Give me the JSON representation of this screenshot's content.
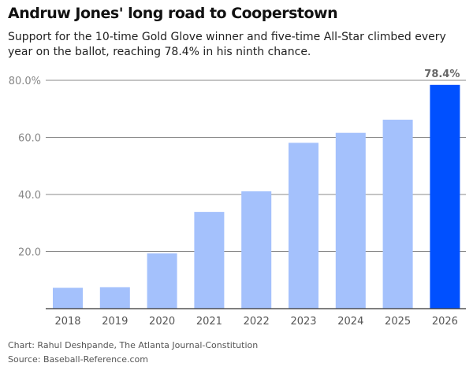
{
  "title": "Andruw Jones' long road to Cooperstown",
  "subtitle": "Support for the 10-time Gold Glove winner and five-time All-Star climbed every year on the ballot, reaching 78.4% in his ninth chance.",
  "credit": "Chart: Rahul Deshpande, The Atlanta Journal-Constitution",
  "source": "Source: Baseball-Reference.com",
  "chart_data": {
    "type": "bar",
    "categories": [
      "2018",
      "2019",
      "2020",
      "2021",
      "2022",
      "2023",
      "2024",
      "2025",
      "2026"
    ],
    "values": [
      7.3,
      7.5,
      19.4,
      33.9,
      41.1,
      58.1,
      61.6,
      66.2,
      78.4
    ],
    "ylim": [
      0,
      80
    ],
    "yticks": [
      20,
      40,
      60,
      80
    ],
    "ytick_labels": [
      "20.0",
      "40.0",
      "60.0",
      "80.0%"
    ],
    "data_labels": [
      {
        "category": "2026",
        "text": "78.4%"
      }
    ],
    "grid": true,
    "colors": {
      "default": "#a4c1fc",
      "highlight": "#0050ff",
      "highlight_category": "2026"
    }
  }
}
